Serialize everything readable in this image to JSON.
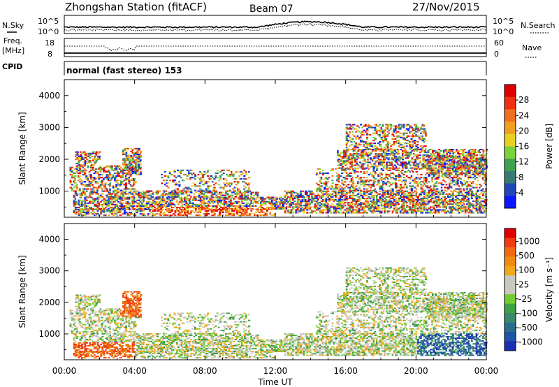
{
  "header": {
    "station": "Zhongshan Station (fitACF)",
    "beam": "Beam 07",
    "date": "27/Nov/2015"
  },
  "sky_panel": {
    "left_label": "N.Sky",
    "right_label": "N.Search",
    "left_ticks": [
      "10^5",
      "10^0"
    ],
    "right_ticks": [
      "10^5",
      "10^0"
    ]
  },
  "freq_panel": {
    "left_label_1": "Freq.",
    "left_label_2": "[MHz]",
    "left_ticks": [
      "18",
      "8"
    ],
    "right_label": "Nave",
    "right_ticks": [
      "60",
      "0"
    ]
  },
  "cpid_panel": {
    "label": "CPID",
    "text": "normal (fast stereo) 153"
  },
  "chart_data": [
    {
      "type": "heatmap",
      "name": "power",
      "xlabel": "Time UT",
      "ylabel": "Slant Range [km]",
      "xlim": [
        0,
        24
      ],
      "ylim": [
        180,
        4500
      ],
      "x_ticks": [
        "00:00",
        "04:00",
        "08:00",
        "12:00",
        "16:00",
        "20:00",
        "00:00"
      ],
      "y_ticks": [
        1000,
        2000,
        3000,
        4000
      ],
      "colorbar_label": "Power [dB]",
      "colorbar_ticks": [
        4,
        8,
        12,
        16,
        20,
        24,
        28
      ],
      "colorbar_colors": [
        "#0a18ff",
        "#2046b8",
        "#3a7a74",
        "#42a050",
        "#7ed13a",
        "#e8d020",
        "#f0a020",
        "#f07020",
        "#f03010",
        "#e00000"
      ]
    },
    {
      "type": "heatmap",
      "name": "velocity",
      "xlabel": "Time UT",
      "ylabel": "Slant Range [km]",
      "xlim": [
        0,
        24
      ],
      "ylim": [
        180,
        4500
      ],
      "x_ticks": [
        "00:00",
        "04:00",
        "08:00",
        "12:00",
        "16:00",
        "20:00",
        "00:00"
      ],
      "y_ticks": [
        1000,
        2000,
        3000,
        4000
      ],
      "colorbar_label": "Velocity [m s⁻¹]",
      "colorbar_ticks": [
        "1000",
        "500",
        "100",
        "25",
        "-25",
        "-100",
        "-500",
        "-1000"
      ],
      "colorbar_colors": [
        "#1a2fb0",
        "#1f52a8",
        "#2a6e8c",
        "#3a8a6a",
        "#3fa045",
        "#74cc2e",
        "#c8c8c0",
        "#c8c8c0",
        "#f0a818",
        "#f08a10",
        "#f06a10",
        "#f03a10",
        "#e00000"
      ]
    }
  ]
}
